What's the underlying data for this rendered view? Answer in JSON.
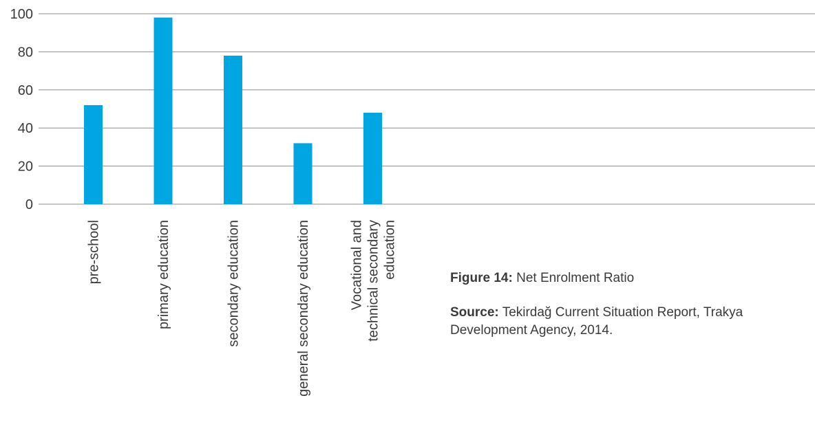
{
  "chart_data": {
    "type": "bar",
    "categories": [
      "pre-school",
      "primary education",
      "secondary education",
      "general secondary education",
      "Vocational and technical secondary education"
    ],
    "category_label_lines": [
      [
        "pre-school"
      ],
      [
        "primary education"
      ],
      [
        "secondary education"
      ],
      [
        "general secondary education"
      ],
      [
        "Vocational and",
        "technical secondary",
        "education"
      ]
    ],
    "values": [
      52,
      98,
      78,
      32,
      48
    ],
    "yticks": [
      0,
      20,
      40,
      60,
      80,
      100
    ],
    "ylim": [
      0,
      100
    ],
    "grid": true,
    "bar_color": "#00a6e2",
    "grid_color": "#8c8c8c",
    "title": "",
    "xlabel": "",
    "ylabel": ""
  },
  "caption": {
    "figure_label": "Figure 14:",
    "figure_text": "Net Enrolment Ratio",
    "source_label": "Source:",
    "source_text_line1": "Tekirdağ Current Situation Report, Trakya",
    "source_text_line2": "Development Agency, 2014."
  }
}
